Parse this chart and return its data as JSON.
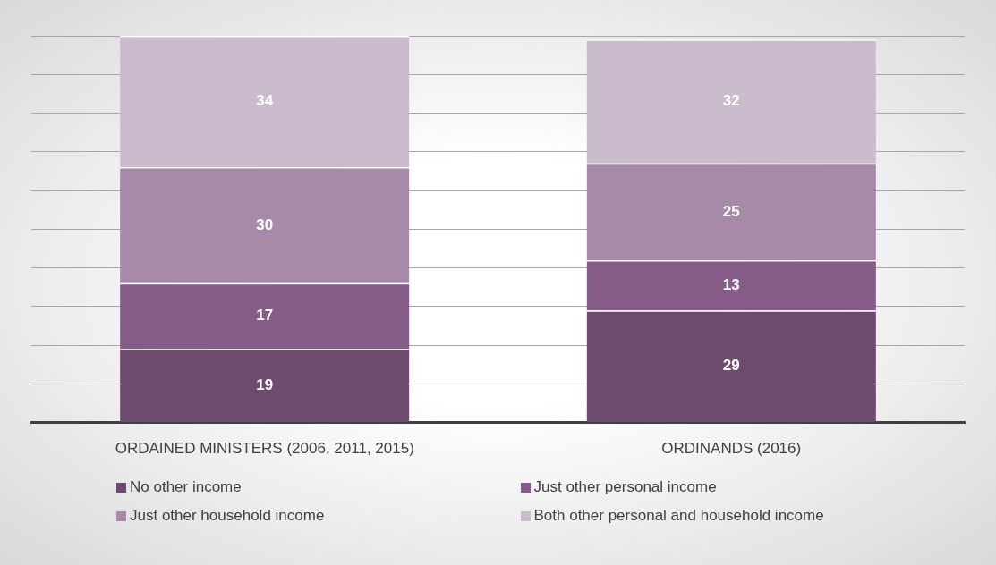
{
  "chart_data": {
    "type": "bar",
    "stacked": true,
    "categories": [
      "ORDAINED MINISTERS (2006, 2011, 2015)",
      "ORDINANDS (2016)"
    ],
    "series": [
      {
        "name": "No other income",
        "color": "#6d4b6f",
        "values": [
          19,
          29
        ]
      },
      {
        "name": "Just other personal income",
        "color": "#855b88",
        "values": [
          17,
          13
        ]
      },
      {
        "name": "Just other household income",
        "color": "#a68aa7",
        "values": [
          30,
          25
        ]
      },
      {
        "name": "Both other personal and household income",
        "color": "#cbbccd",
        "values": [
          34,
          32
        ]
      }
    ],
    "tick_labels": "x",
    "grid": "y",
    "legend": "bottom",
    "data_labels": true
  }
}
